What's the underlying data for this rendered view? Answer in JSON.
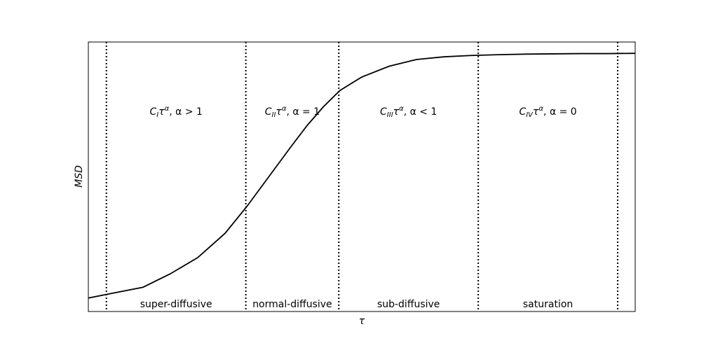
{
  "chart_data": {
    "type": "line",
    "title": "",
    "xlabel": "τ",
    "ylabel": "MSD",
    "xlim": [
      0,
      1
    ],
    "ylim": [
      0,
      1
    ],
    "x_ticks": [],
    "y_ticks": [],
    "grid": false,
    "legend": "none",
    "series": [
      {
        "x": [
          0.0,
          0.05,
          0.1,
          0.15,
          0.2,
          0.25,
          0.29,
          0.33,
          0.37,
          0.4,
          0.43,
          0.46,
          0.5,
          0.55,
          0.6,
          0.65,
          0.7,
          0.75,
          0.8,
          0.85,
          0.9,
          0.95,
          1.0
        ],
        "y": [
          0.05,
          0.07,
          0.09,
          0.14,
          0.2,
          0.29,
          0.39,
          0.5,
          0.61,
          0.69,
          0.76,
          0.82,
          0.87,
          0.91,
          0.935,
          0.945,
          0.95,
          0.953,
          0.955,
          0.956,
          0.957,
          0.957,
          0.958
        ],
        "color": "#000000"
      }
    ],
    "vlines": {
      "x": [
        0.033,
        0.288,
        0.458,
        0.713,
        0.968
      ],
      "style": "dotted",
      "color": "#000000"
    },
    "regions": [
      {
        "formula": {
          "C": "C",
          "sub": "I",
          "tau": "τ",
          "alpha": "α",
          "rel": ", α > 1"
        },
        "label": "super-diffusive"
      },
      {
        "formula": {
          "C": "C",
          "sub": "II",
          "tau": "τ",
          "alpha": "α",
          "rel": ", α = 1"
        },
        "label": "normal-diffusive"
      },
      {
        "formula": {
          "C": "C",
          "sub": "III",
          "tau": "τ",
          "alpha": "α",
          "rel": ", α < 1"
        },
        "label": "sub-diffusive"
      },
      {
        "formula": {
          "C": "C",
          "sub": "IV",
          "tau": "τ",
          "alpha": "α",
          "rel": ", α = 0"
        },
        "label": "saturation"
      }
    ]
  }
}
